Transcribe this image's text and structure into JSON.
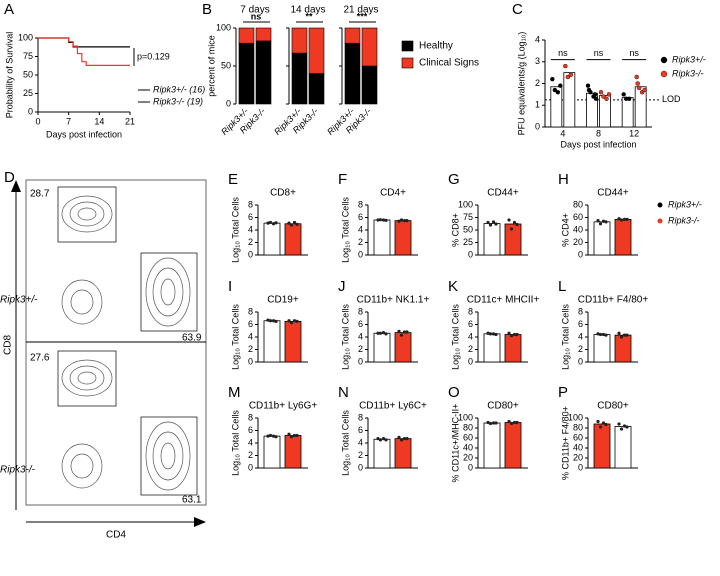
{
  "chart_data": [
    {
      "panel": "A",
      "type": "line",
      "ylabel": "Probability of Survival",
      "xlabel": "Days post infection",
      "xlim": [
        0,
        21
      ],
      "xticks": [
        0,
        7,
        14,
        21
      ],
      "ylim": [
        0,
        100
      ],
      "yticks": [
        0,
        25,
        50,
        75,
        100
      ],
      "annotation": "p=0.129",
      "series": [
        {
          "name": "Ripk3+/- (16)",
          "color": "#000000",
          "x": [
            0,
            7,
            8,
            21
          ],
          "values": [
            100,
            94,
            88,
            88
          ]
        },
        {
          "name": "Ripk3-/- (19)",
          "color": "#ee3a22",
          "x": [
            0,
            7,
            8,
            9,
            10,
            11,
            21
          ],
          "values": [
            100,
            95,
            89,
            79,
            68,
            63,
            63
          ]
        }
      ]
    },
    {
      "panel": "B",
      "type": "stacked_bar",
      "ylabel": "percent of mice",
      "ylim": [
        0,
        100
      ],
      "yticks": [
        0,
        50,
        100
      ],
      "subtitles": [
        "7 days",
        "14 days",
        "21 days"
      ],
      "annotations": [
        "ns",
        "**",
        "***"
      ],
      "categories": [
        "Ripk3+/-",
        "Ripk3-/-"
      ],
      "series": [
        {
          "name": "Healthy",
          "color": "#000000",
          "values": [
            [
              80,
              83
            ],
            [
              67,
              40
            ],
            [
              80,
              50
            ]
          ]
        },
        {
          "name": "Clinical Signs",
          "color": "#ee3a22",
          "values": [
            [
              20,
              17
            ],
            [
              33,
              60
            ],
            [
              20,
              50
            ]
          ]
        }
      ]
    },
    {
      "panel": "C",
      "type": "grouped_bar",
      "ylabel": "PFU equivalents/g (Log₁₀)",
      "xlabel": "Days post infection",
      "ylim": [
        0,
        4
      ],
      "yticks": [
        0,
        1,
        2,
        3,
        4
      ],
      "categories": [
        "4",
        "8",
        "12"
      ],
      "annotations": [
        "ns",
        "ns",
        "ns"
      ],
      "lod": {
        "value": 1.25,
        "label": "LOD"
      },
      "series": [
        {
          "name": "Ripk3+/-",
          "color": "#ffffff",
          "point_color": "#000000",
          "values": [
            1.85,
            1.55,
            1.35
          ],
          "points": [
            [
              2.2,
              1.7,
              1.6,
              1.9
            ],
            [
              1.9,
              1.6,
              1.4,
              1.3,
              1.7,
              1.5
            ],
            [
              1.5,
              1.3,
              1.3
            ]
          ]
        },
        {
          "name": "Ripk3-/-",
          "color": "#ffffff",
          "point_color": "#ee3a22",
          "values": [
            2.5,
            1.45,
            1.85
          ],
          "points": [
            [
              2.8,
              2.3,
              2.4
            ],
            [
              1.6,
              1.4,
              1.3,
              1.5
            ],
            [
              2.3,
              1.8,
              1.6,
              1.7,
              2.0
            ]
          ]
        }
      ]
    },
    {
      "panel": "E",
      "type": "bar",
      "title": "CD8+",
      "ylabel": "Log₁₀ Total Cells",
      "ylim": [
        0,
        8
      ],
      "yticks": [
        0,
        2,
        4,
        6,
        8
      ],
      "values": [
        5.1,
        5.0
      ],
      "colors": [
        "#ffffff",
        "#ee3a22"
      ],
      "points": [
        [
          5.1,
          5.2,
          5.0,
          5.15
        ],
        [
          5.1,
          4.8,
          5.2,
          4.9
        ]
      ]
    },
    {
      "panel": "F",
      "type": "bar",
      "title": "CD4+",
      "ylabel": "Log₁₀ Total Cells",
      "ylim": [
        0,
        8
      ],
      "yticks": [
        0,
        2,
        4,
        6,
        8
      ],
      "values": [
        5.6,
        5.5
      ],
      "colors": [
        "#ffffff",
        "#ee3a22"
      ],
      "points": [
        [
          5.6,
          5.65,
          5.6,
          5.55
        ],
        [
          5.4,
          5.6,
          5.5,
          5.5
        ]
      ]
    },
    {
      "panel": "G",
      "type": "bar",
      "title": "CD44+",
      "ylabel": "% CD8+",
      "ylim": [
        0,
        100
      ],
      "yticks": [
        0,
        25,
        50,
        75,
        100
      ],
      "values": [
        63,
        62
      ],
      "colors": [
        "#ffffff",
        "#ee3a22"
      ],
      "points": [
        [
          65,
          60,
          66,
          62
        ],
        [
          70,
          52,
          65,
          61
        ]
      ]
    },
    {
      "panel": "H",
      "type": "bar",
      "title": "CD44+",
      "ylabel": "% CD4+",
      "ylim": [
        0,
        80
      ],
      "yticks": [
        0,
        20,
        40,
        60,
        80
      ],
      "values": [
        53,
        57
      ],
      "colors": [
        "#ffffff",
        "#ee3a22"
      ],
      "points": [
        [
          55,
          50,
          54,
          53
        ],
        [
          58,
          56,
          57,
          57
        ]
      ]
    },
    {
      "panel": "I",
      "type": "bar",
      "title": "CD19+",
      "ylabel": "Log₁₀ Total Cells",
      "ylim": [
        0,
        8
      ],
      "yticks": [
        0,
        2,
        4,
        6,
        8
      ],
      "values": [
        6.6,
        6.5
      ],
      "colors": [
        "#ffffff",
        "#ee3a22"
      ],
      "points": [
        [
          6.7,
          6.6,
          6.6,
          6.5
        ],
        [
          6.6,
          6.3,
          6.6,
          6.5
        ]
      ]
    },
    {
      "panel": "J",
      "type": "bar",
      "title": "CD11b+ NK1.1+",
      "ylabel": "Log₁₀ Total Cells",
      "ylim": [
        0,
        8
      ],
      "yticks": [
        0,
        2,
        4,
        6,
        8
      ],
      "values": [
        4.6,
        4.7
      ],
      "colors": [
        "#ffffff",
        "#ee3a22"
      ],
      "points": [
        [
          4.6,
          4.6,
          4.7,
          4.5
        ],
        [
          4.9,
          4.3,
          4.8,
          4.8
        ]
      ]
    },
    {
      "panel": "K",
      "type": "bar",
      "title": "CD11c+ MHCII+",
      "ylabel": "Log₁₀ Total Cells",
      "ylim": [
        0,
        8
      ],
      "yticks": [
        0,
        2,
        4,
        6,
        8
      ],
      "values": [
        4.5,
        4.4
      ],
      "colors": [
        "#ffffff",
        "#ee3a22"
      ],
      "points": [
        [
          4.6,
          4.5,
          4.5,
          4.4
        ],
        [
          4.6,
          4.2,
          4.4,
          4.4
        ]
      ]
    },
    {
      "panel": "L",
      "type": "bar",
      "title": "CD11b+ F4/80+",
      "ylabel": "Log₁₀ Total Cells",
      "ylim": [
        0,
        8
      ],
      "yticks": [
        0,
        2,
        4,
        6,
        8
      ],
      "values": [
        4.4,
        4.3
      ],
      "colors": [
        "#ffffff",
        "#ee3a22"
      ],
      "points": [
        [
          4.5,
          4.4,
          4.4,
          4.3
        ],
        [
          4.6,
          4.0,
          4.3,
          4.3
        ]
      ]
    },
    {
      "panel": "M",
      "type": "bar",
      "title": "CD11b+ Ly6G+",
      "ylabel": "Log₁₀ Total Cells",
      "ylim": [
        0,
        8
      ],
      "yticks": [
        0,
        2,
        4,
        6,
        8
      ],
      "values": [
        5.1,
        5.2
      ],
      "colors": [
        "#ffffff",
        "#ee3a22"
      ],
      "points": [
        [
          5.1,
          5.2,
          5.1,
          5.0
        ],
        [
          5.4,
          5.0,
          5.2,
          5.2
        ]
      ]
    },
    {
      "panel": "N",
      "type": "bar",
      "title": "CD11b+ Ly6C+",
      "ylabel": "Log₁₀ Total Cells",
      "ylim": [
        0,
        8
      ],
      "yticks": [
        0,
        2,
        4,
        6,
        8
      ],
      "values": [
        4.6,
        4.7
      ],
      "colors": [
        "#ffffff",
        "#ee3a22"
      ],
      "points": [
        [
          4.7,
          4.5,
          4.7,
          4.5
        ],
        [
          4.9,
          4.5,
          4.7,
          4.7
        ]
      ]
    },
    {
      "panel": "O",
      "type": "bar",
      "title": "CD80+",
      "ylabel": "% CD11c+/MHC-II+",
      "ylim": [
        0,
        100
      ],
      "yticks": [
        0,
        20,
        40,
        60,
        80,
        100
      ],
      "values": [
        90,
        91
      ],
      "colors": [
        "#ffffff",
        "#ee3a22"
      ],
      "points": [
        [
          91,
          89,
          90,
          90
        ],
        [
          93,
          89,
          91,
          91
        ]
      ]
    },
    {
      "panel": "P",
      "type": "bar",
      "title": "CD80+",
      "ylabel": "% CD11b+ F4/80+",
      "ylim": [
        0,
        100
      ],
      "yticks": [
        0,
        20,
        40,
        60,
        80,
        100
      ],
      "values": [
        88,
        83
      ],
      "colors": [
        "#ee3a22",
        "#ffffff"
      ],
      "points": [
        [
          93,
          82,
          90,
          87
        ],
        [
          88,
          78,
          84,
          82
        ]
      ]
    }
  ],
  "shared_legend": [
    {
      "name": "Ripk3+/-",
      "color": "#000000"
    },
    {
      "name": "Ripk3-/-",
      "color": "#ee3a22"
    }
  ],
  "flow_panel": {
    "panel": "D",
    "rows": [
      "Ripk3+/-",
      "Ripk3-/-"
    ],
    "y_label": "CD8",
    "x_label": "CD4",
    "gates": [
      [
        "28.7",
        "63.9"
      ],
      [
        "27.6",
        "63.1"
      ]
    ]
  }
}
